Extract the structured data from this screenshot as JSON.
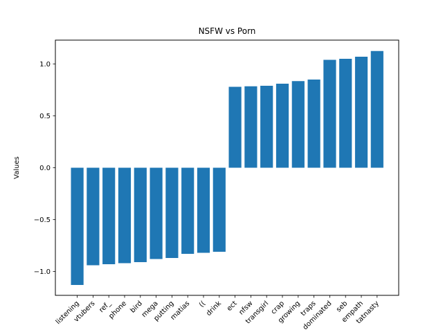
{
  "chart_data": {
    "type": "bar",
    "title": "NSFW vs Porn",
    "xlabel": "",
    "ylabel": "Values",
    "ylim": [
      -1.23,
      1.23
    ],
    "yticks": [
      -1.0,
      -0.5,
      0.0,
      0.5,
      1.0
    ],
    "ytick_labels": [
      "−1.0",
      "−0.5",
      "0.0",
      "0.5",
      "1.0"
    ],
    "grid": false,
    "bar_color": "#1f77b4",
    "categories": [
      "listening",
      "vtubers",
      "ref_",
      "phone",
      "bird",
      "mega",
      "putting",
      "matias",
      "((",
      "drink",
      "ect",
      "nfsw",
      "transgirl",
      "crap",
      "growing",
      "traps",
      "dominated",
      "seb",
      "empath",
      "tatnasty"
    ],
    "values": [
      -1.13,
      -0.94,
      -0.93,
      -0.92,
      -0.91,
      -0.88,
      -0.87,
      -0.83,
      -0.82,
      -0.81,
      0.78,
      0.785,
      0.79,
      0.81,
      0.835,
      0.85,
      1.04,
      1.05,
      1.07,
      1.125
    ]
  }
}
